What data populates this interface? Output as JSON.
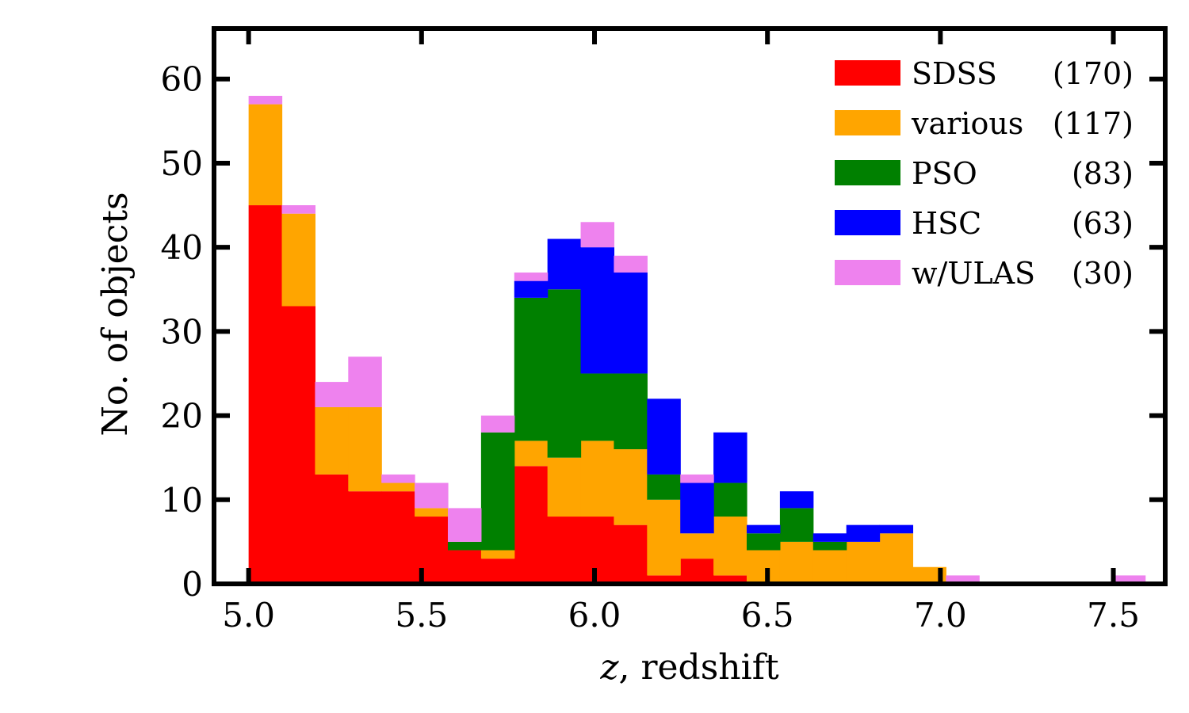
{
  "chart_data": {
    "type": "bar",
    "stacked": true,
    "bin_edges": [
      5.0,
      5.096,
      5.192,
      5.288,
      5.384,
      5.48,
      5.576,
      5.672,
      5.768,
      5.864,
      5.96,
      6.056,
      6.152,
      6.248,
      6.344,
      6.44,
      6.536,
      6.632,
      6.728,
      6.824,
      6.92,
      7.016,
      7.112,
      7.208,
      7.304,
      7.4,
      7.496,
      7.592
    ],
    "series": [
      {
        "name": "SDSS",
        "count_label": "(170)",
        "color": "#ff0000",
        "values": [
          45,
          33,
          13,
          11,
          11,
          8,
          4,
          3,
          14,
          8,
          8,
          7,
          1,
          3,
          1,
          0,
          0,
          0,
          0,
          0,
          0,
          0,
          0,
          0,
          0,
          0,
          0
        ]
      },
      {
        "name": "various",
        "count_label": "(117)",
        "color": "#ffa500",
        "values": [
          12,
          11,
          8,
          10,
          1,
          1,
          0,
          1,
          3,
          7,
          9,
          9,
          9,
          3,
          7,
          4,
          5,
          4,
          5,
          6,
          2,
          0,
          0,
          0,
          0,
          0,
          0
        ]
      },
      {
        "name": "PSO",
        "count_label": "(83)",
        "color": "#008000",
        "values": [
          0,
          0,
          0,
          0,
          0,
          0,
          1,
          14,
          17,
          20,
          8,
          9,
          3,
          0,
          4,
          2,
          4,
          1,
          0,
          0,
          0,
          0,
          0,
          0,
          0,
          0,
          0
        ]
      },
      {
        "name": "HSC",
        "count_label": "(63)",
        "color": "#0000ff",
        "values": [
          0,
          0,
          0,
          0,
          0,
          0,
          0,
          0,
          2,
          6,
          15,
          12,
          9,
          6,
          6,
          1,
          2,
          1,
          2,
          1,
          0,
          0,
          0,
          0,
          0,
          0,
          0
        ]
      },
      {
        "name": "w/ULAS",
        "count_label": "(30)",
        "color": "#ee82ee",
        "values": [
          1,
          1,
          3,
          6,
          1,
          3,
          4,
          2,
          1,
          0,
          3,
          2,
          0,
          1,
          0,
          0,
          0,
          0,
          0,
          0,
          0,
          1,
          0,
          0,
          0,
          0,
          1
        ]
      }
    ],
    "xlim": [
      4.9,
      7.65
    ],
    "ylim": [
      0,
      66
    ],
    "xticks": [
      5.0,
      5.5,
      6.0,
      6.5,
      7.0,
      7.5
    ],
    "xtick_labels": [
      "5.0",
      "5.5",
      "6.0",
      "6.5",
      "7.0",
      "7.5"
    ],
    "yticks": [
      0,
      10,
      20,
      30,
      40,
      50,
      60
    ],
    "ytick_labels": [
      "0",
      "10",
      "20",
      "30",
      "40",
      "50",
      "60"
    ],
    "xlabel_italic": "z",
    "xlabel_rest": ", redshift",
    "ylabel": "No. of objects",
    "legend_loc": "upper right",
    "grid": false
  }
}
